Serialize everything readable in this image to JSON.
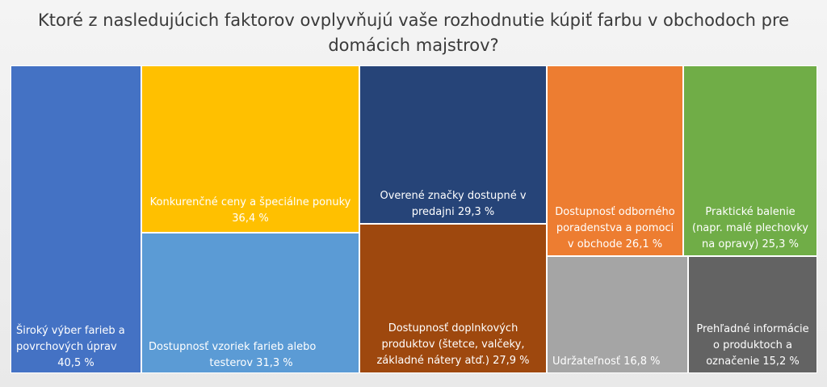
{
  "chart_data": {
    "type": "treemap",
    "title": "Ktoré z nasledujúcich faktorov ovplyvňujú vaše rozhodnutie kúpiť farbu v obchodoch pre domácich majstrov?",
    "items": [
      {
        "label_lines": [
          "Široký výber farieb a",
          "povrchových úprav",
          "40,5 %"
        ],
        "value": 40.5,
        "color": "#4472C4"
      },
      {
        "label_lines": [
          "Konkurenčné ceny a špeciálne ponuky",
          "36,4 %"
        ],
        "value": 36.4,
        "color": "#FFC000"
      },
      {
        "label_lines": [
          "Dostupnosť vzoriek farieb alebo",
          "testerov  31,3 %"
        ],
        "value": 31.3,
        "color": "#5B9BD5"
      },
      {
        "label_lines": [
          "Overené značky dostupné v",
          "predajni 29,3 %"
        ],
        "value": 29.3,
        "color": "#264478"
      },
      {
        "label_lines": [
          "Dostupnosť doplnkových",
          "produktov (štetce, valčeky,",
          "základné nátery atď.) 27,9 %"
        ],
        "value": 27.9,
        "color": "#9E480E"
      },
      {
        "label_lines": [
          "Dostupnosť odborného",
          "poradenstva a pomoci",
          "v obchode 26,1 %"
        ],
        "value": 26.1,
        "color": "#ED7D31"
      },
      {
        "label_lines": [
          "Praktické balenie",
          "(napr. malé plechovky",
          "na opravy) 25,3 %"
        ],
        "value": 25.3,
        "color": "#70AD47"
      },
      {
        "label_lines": [
          "Udržateľnosť 16,8 %"
        ],
        "value": 16.8,
        "color": "#A5A5A5"
      },
      {
        "label_lines": [
          "Prehľadné informácie",
          "o produktoch a",
          "označenie 15,2 %"
        ],
        "value": 15.2,
        "color": "#636363"
      }
    ]
  }
}
